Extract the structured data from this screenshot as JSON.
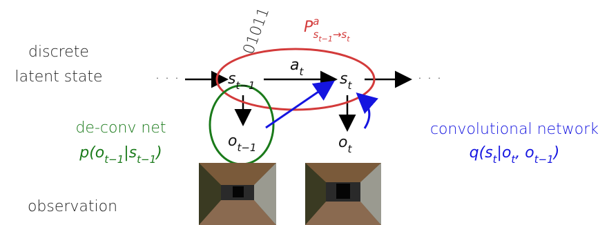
{
  "labels": {
    "latent_line1": "discrete",
    "latent_line2": "latent state",
    "observation": "observation"
  },
  "ellipsis_left": "· · ·",
  "ellipsis_right": "· · ·",
  "nodes": [
    {
      "base": "s",
      "sub": "t−1"
    },
    {
      "base": "s",
      "sub": "t"
    },
    {
      "base": "o",
      "sub": "t−1"
    },
    {
      "base": "o",
      "sub": "t"
    }
  ],
  "action": {
    "base": "a",
    "sub": "t"
  },
  "bits": "01011",
  "transition": {
    "base": "P",
    "sup": "a",
    "sub_parts": [
      {
        "text": "s"
      },
      {
        "sub": "t−1"
      },
      {
        "text": "→s"
      },
      {
        "sub": "t"
      }
    ]
  },
  "decoder": {
    "name": "de-conv net",
    "formula": [
      {
        "text": "p(o"
      },
      {
        "sub": "t−1"
      },
      {
        "text": "|s"
      },
      {
        "sub": "t−1"
      },
      {
        "text": ")"
      }
    ]
  },
  "encoder": {
    "name": "convolutional network",
    "formula": [
      {
        "text": "q(s"
      },
      {
        "sub": "t"
      },
      {
        "text": "|o"
      },
      {
        "sub": "t"
      },
      {
        "text": ", o"
      },
      {
        "sub": "t−1"
      },
      {
        "text": ")"
      }
    ]
  }
}
